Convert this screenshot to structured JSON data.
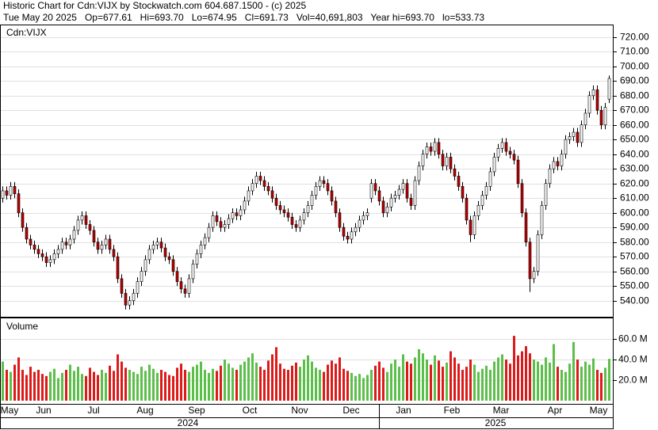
{
  "chart_data": {
    "type": "candlestick",
    "title": "Historic Chart for Cdn:VIJX by Stockwatch.com 604.687.1500 - (c) 2025",
    "subtitle": "Tue May 20 2025   Op=677.61   Hi=693.70   Lo=674.95   Cl=691.73   Vol=40,691,803   Year hi=693.70   lo=533.73",
    "symbol_label": "Cdn:VIJX",
    "volume_label": "Volume",
    "months": [
      "May",
      "Jun",
      "Jul",
      "Aug",
      "Sep",
      "Oct",
      "Nov",
      "Dec",
      "Jan",
      "Feb",
      "Mar",
      "Apr",
      "May"
    ],
    "years": [
      "2024",
      "2025"
    ],
    "open": [
      610,
      615,
      612,
      618,
      613,
      600,
      590,
      582,
      578,
      575,
      572,
      570,
      566,
      568,
      572,
      575,
      580,
      578,
      582,
      588,
      595,
      598,
      592,
      588,
      580,
      575,
      578,
      582,
      575,
      570,
      555,
      545,
      537,
      540,
      545,
      553,
      560,
      568,
      575,
      578,
      580,
      576,
      570,
      568,
      560,
      553,
      548,
      545,
      555,
      565,
      572,
      578,
      583,
      590,
      598,
      594,
      590,
      592,
      596,
      600,
      598,
      602,
      608,
      615,
      620,
      625,
      622,
      618,
      615,
      610,
      605,
      602,
      600,
      597,
      592,
      590,
      595,
      600,
      605,
      612,
      618,
      622,
      620,
      615,
      608,
      600,
      590,
      584,
      582,
      587,
      590,
      595,
      598,
      610,
      620,
      615,
      608,
      600,
      604,
      610,
      612,
      616,
      620,
      610,
      605,
      622,
      632,
      640,
      645,
      642,
      648,
      640,
      632,
      638,
      630,
      625,
      618,
      610,
      595,
      585,
      598,
      605,
      612,
      618,
      628,
      638,
      644,
      648,
      642,
      640,
      636,
      620,
      600,
      580,
      555,
      560,
      585,
      605,
      620,
      630,
      635,
      632,
      640,
      650,
      652,
      655,
      648,
      660,
      668,
      680,
      684,
      670,
      660,
      677.61
    ],
    "high": [
      618,
      618,
      621,
      621,
      616,
      603,
      593,
      585,
      581,
      578,
      575,
      573,
      571,
      575,
      578,
      583,
      583,
      585,
      591,
      598,
      601,
      601,
      595,
      591,
      583,
      581,
      585,
      585,
      578,
      573,
      558,
      548,
      543,
      548,
      556,
      563,
      571,
      578,
      581,
      583,
      583,
      579,
      573,
      571,
      563,
      556,
      551,
      558,
      568,
      575,
      581,
      586,
      593,
      601,
      601,
      597,
      595,
      599,
      603,
      603,
      605,
      611,
      618,
      623,
      628,
      628,
      625,
      621,
      618,
      613,
      608,
      605,
      603,
      600,
      595,
      598,
      603,
      608,
      615,
      621,
      625,
      625,
      623,
      618,
      611,
      603,
      593,
      587,
      590,
      593,
      598,
      601,
      603,
      623,
      623,
      618,
      611,
      607,
      613,
      615,
      619,
      623,
      623,
      613,
      625,
      635,
      643,
      648,
      648,
      651,
      651,
      643,
      641,
      641,
      633,
      628,
      621,
      613,
      598,
      601,
      608,
      615,
      621,
      631,
      641,
      647,
      651,
      651,
      645,
      643,
      639,
      623,
      603,
      583,
      563,
      588,
      608,
      623,
      633,
      638,
      638,
      643,
      653,
      655,
      658,
      658,
      663,
      671,
      683,
      687,
      687,
      673,
      675,
      693.7
    ],
    "low": [
      607,
      609,
      609,
      610,
      597,
      587,
      579,
      575,
      572,
      569,
      567,
      563,
      563,
      565,
      569,
      572,
      575,
      575,
      579,
      585,
      592,
      589,
      585,
      577,
      572,
      572,
      575,
      572,
      567,
      552,
      542,
      534,
      534,
      537,
      542,
      550,
      557,
      565,
      572,
      575,
      573,
      567,
      565,
      557,
      550,
      545,
      542,
      542,
      552,
      562,
      569,
      575,
      580,
      587,
      591,
      587,
      587,
      589,
      593,
      595,
      595,
      599,
      605,
      612,
      617,
      619,
      615,
      612,
      607,
      602,
      599,
      597,
      594,
      589,
      587,
      587,
      592,
      597,
      602,
      609,
      615,
      617,
      612,
      605,
      597,
      587,
      581,
      579,
      579,
      584,
      587,
      592,
      595,
      607,
      612,
      605,
      597,
      597,
      601,
      607,
      609,
      613,
      607,
      602,
      602,
      619,
      629,
      637,
      639,
      639,
      637,
      629,
      629,
      627,
      622,
      615,
      607,
      592,
      580,
      582,
      595,
      602,
      609,
      615,
      625,
      635,
      641,
      639,
      637,
      633,
      617,
      597,
      577,
      546,
      552,
      557,
      582,
      602,
      617,
      627,
      629,
      629,
      637,
      647,
      649,
      645,
      645,
      657,
      665,
      677,
      667,
      657,
      657,
      674.95
    ],
    "close": [
      615,
      612,
      618,
      613,
      600,
      590,
      582,
      578,
      575,
      572,
      570,
      566,
      568,
      572,
      575,
      580,
      578,
      582,
      588,
      595,
      598,
      592,
      588,
      580,
      575,
      578,
      582,
      575,
      570,
      555,
      545,
      537,
      540,
      545,
      553,
      560,
      568,
      575,
      578,
      580,
      576,
      570,
      568,
      560,
      553,
      548,
      545,
      555,
      565,
      572,
      578,
      583,
      590,
      598,
      594,
      590,
      592,
      596,
      600,
      598,
      602,
      608,
      615,
      620,
      625,
      622,
      618,
      615,
      610,
      605,
      602,
      600,
      597,
      592,
      590,
      595,
      600,
      605,
      612,
      618,
      622,
      620,
      615,
      608,
      600,
      590,
      584,
      582,
      587,
      590,
      595,
      598,
      600,
      620,
      615,
      608,
      600,
      604,
      610,
      612,
      616,
      620,
      610,
      605,
      622,
      632,
      640,
      645,
      642,
      648,
      640,
      632,
      638,
      630,
      625,
      618,
      610,
      595,
      585,
      598,
      605,
      612,
      618,
      628,
      638,
      644,
      648,
      642,
      640,
      636,
      620,
      600,
      580,
      555,
      560,
      585,
      605,
      620,
      630,
      635,
      632,
      640,
      650,
      652,
      655,
      648,
      660,
      668,
      680,
      684,
      670,
      660,
      672,
      691.73
    ],
    "volume": [
      38,
      30,
      28,
      35,
      42,
      30,
      25,
      33,
      28,
      30,
      26,
      24,
      28,
      31,
      22,
      27,
      30,
      35,
      29,
      33,
      26,
      24,
      32,
      28,
      25,
      30,
      27,
      34,
      29,
      45,
      38,
      32,
      30,
      28,
      26,
      33,
      29,
      35,
      31,
      27,
      30,
      28,
      25,
      24,
      32,
      36,
      30,
      28,
      33,
      35,
      38,
      30,
      27,
      31,
      29,
      34,
      40,
      36,
      32,
      30,
      35,
      38,
      42,
      46,
      37,
      33,
      30,
      39,
      45,
      52,
      36,
      31,
      30,
      34,
      37,
      33,
      40,
      44,
      38,
      32,
      30,
      28,
      35,
      39,
      36,
      42,
      31,
      29,
      27,
      24,
      26,
      22,
      25,
      30,
      34,
      38,
      32,
      28,
      36,
      40,
      33,
      45,
      38,
      36,
      42,
      50,
      46,
      40,
      35,
      44,
      39,
      33,
      37,
      48,
      42,
      36,
      30,
      33,
      40,
      35,
      28,
      31,
      34,
      30,
      38,
      42,
      45,
      40,
      36,
      63,
      44,
      48,
      53,
      46,
      40,
      38,
      35,
      42,
      37,
      55,
      33,
      30,
      28,
      36,
      57,
      40,
      33,
      38,
      35,
      41,
      30,
      27,
      32,
      40.69
    ],
    "up_color": "#ffffff",
    "down_color": "#c00000",
    "volume_up_color": "#5cbf4a",
    "volume_down_color": "#dd1a1a",
    "ylim": [
      529,
      728
    ],
    "yticks": [
      {
        "value": 540,
        "label": "540.00"
      },
      {
        "value": 550,
        "label": "550.00"
      },
      {
        "value": 560,
        "label": "560.00"
      },
      {
        "value": 570,
        "label": "570.00"
      },
      {
        "value": 580,
        "label": "580.00"
      },
      {
        "value": 590,
        "label": "590.00"
      },
      {
        "value": 600,
        "label": "600.00"
      },
      {
        "value": 610,
        "label": "610.00"
      },
      {
        "value": 620,
        "label": "620.00"
      },
      {
        "value": 630,
        "label": "630.00"
      },
      {
        "value": 640,
        "label": "640.00"
      },
      {
        "value": 650,
        "label": "650.00"
      },
      {
        "value": 660,
        "label": "660.00"
      },
      {
        "value": 670,
        "label": "670.00"
      },
      {
        "value": 680,
        "label": "680.00"
      },
      {
        "value": 690,
        "label": "690.00"
      },
      {
        "value": 700,
        "label": "700.00"
      },
      {
        "value": 710,
        "label": "710.00"
      },
      {
        "value": 720,
        "label": "720.00"
      }
    ],
    "volume_ylim": [
      0,
      80
    ],
    "volume_yticks": [
      {
        "value": 20,
        "label": "20.0 M"
      },
      {
        "value": 40,
        "label": "40.0 M"
      },
      {
        "value": 60,
        "label": "60.0 M"
      }
    ],
    "grid": true
  }
}
